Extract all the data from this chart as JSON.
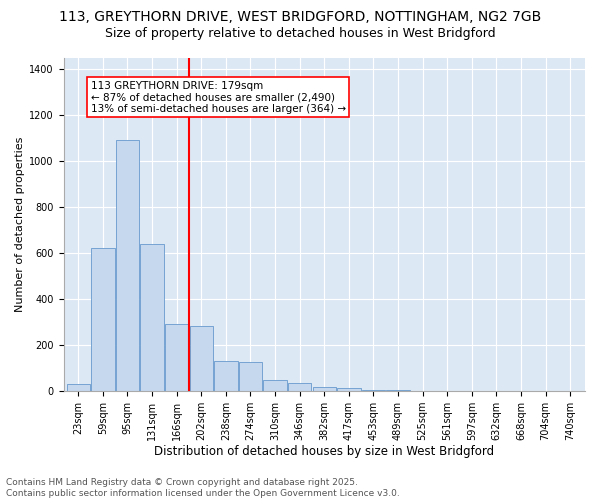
{
  "title1": "113, GREYTHORN DRIVE, WEST BRIDGFORD, NOTTINGHAM, NG2 7GB",
  "title2": "Size of property relative to detached houses in West Bridgford",
  "xlabel": "Distribution of detached houses by size in West Bridgford",
  "ylabel": "Number of detached properties",
  "categories": [
    "23sqm",
    "59sqm",
    "95sqm",
    "131sqm",
    "166sqm",
    "202sqm",
    "238sqm",
    "274sqm",
    "310sqm",
    "346sqm",
    "382sqm",
    "417sqm",
    "453sqm",
    "489sqm",
    "525sqm",
    "561sqm",
    "597sqm",
    "632sqm",
    "668sqm",
    "704sqm",
    "740sqm"
  ],
  "values": [
    30,
    620,
    1090,
    640,
    290,
    285,
    130,
    125,
    50,
    35,
    20,
    13,
    5,
    3,
    1,
    0,
    0,
    0,
    0,
    0,
    0
  ],
  "bar_color": "#c5d8ee",
  "bar_edge_color": "#6699cc",
  "vline_pos": 4.5,
  "annotation_text": "113 GREYTHORN DRIVE: 179sqm\n← 87% of detached houses are smaller (2,490)\n13% of semi-detached houses are larger (364) →",
  "ylim": [
    0,
    1450
  ],
  "yticks": [
    0,
    200,
    400,
    600,
    800,
    1000,
    1200,
    1400
  ],
  "bg_color": "#dde8f5",
  "footer1": "Contains HM Land Registry data © Crown copyright and database right 2025.",
  "footer2": "Contains public sector information licensed under the Open Government Licence v3.0.",
  "title1_fontsize": 10,
  "title2_fontsize": 9,
  "xlabel_fontsize": 8.5,
  "ylabel_fontsize": 8,
  "tick_fontsize": 7,
  "footer_fontsize": 6.5,
  "ann_fontsize": 7.5
}
